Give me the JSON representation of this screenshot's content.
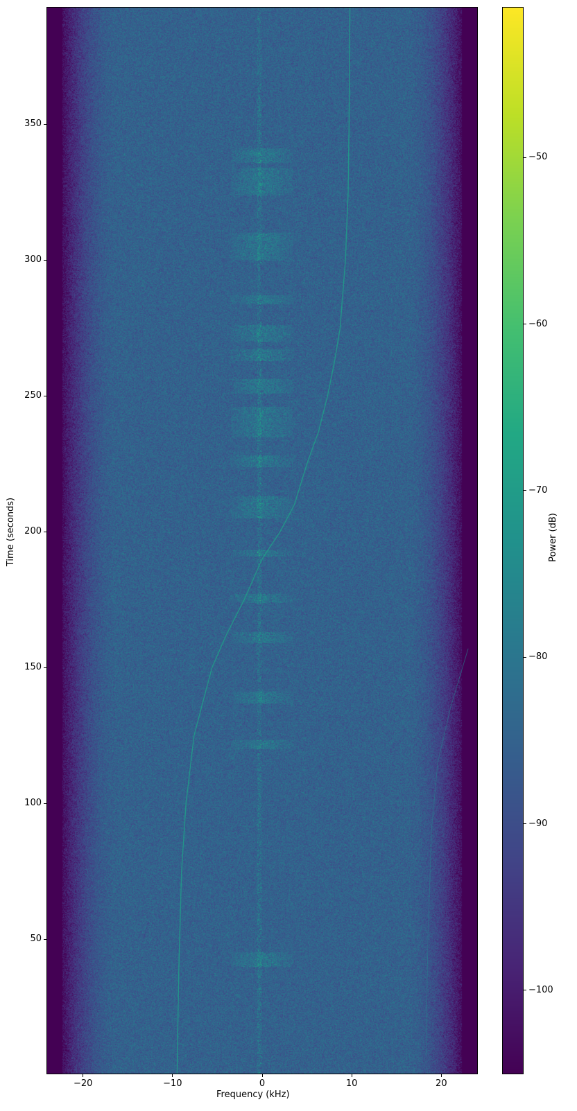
{
  "chart_data": {
    "type": "heatmap",
    "subtype": "spectrogram",
    "xlabel": "Frequency (kHz)",
    "ylabel": "Time (seconds)",
    "colorbar_label": "Power (dB)",
    "colormap": "viridis",
    "xlim": [
      -24,
      24
    ],
    "ylim": [
      0.5,
      393
    ],
    "clim": [
      -105,
      -41
    ],
    "xticks": [
      -20,
      -10,
      0,
      10,
      20
    ],
    "xtick_labels": [
      "−20",
      "−10",
      "0",
      "10",
      "20"
    ],
    "yticks": [
      50,
      100,
      150,
      200,
      250,
      300,
      350
    ],
    "ytick_labels": [
      "50",
      "100",
      "150",
      "200",
      "250",
      "300",
      "350"
    ],
    "cticks": [
      -50,
      -60,
      -70,
      -80,
      -90,
      -100
    ],
    "ctick_labels": [
      "−50",
      "−60",
      "−70",
      "−80",
      "−90",
      "−100"
    ],
    "background_level_db": -85,
    "edge_level_db": -105,
    "signal_traces": [
      {
        "points": [
          [
            -9.5,
            0
          ],
          [
            -9.3,
            40
          ],
          [
            -9.0,
            75
          ],
          [
            -8.5,
            100
          ],
          [
            -7.6,
            125
          ],
          [
            -5.6,
            150
          ],
          [
            -4.0,
            162
          ],
          [
            -2.0,
            175
          ],
          [
            0,
            190
          ],
          [
            2.0,
            200
          ],
          [
            3.6,
            210
          ],
          [
            5.0,
            225
          ],
          [
            6.3,
            237
          ],
          [
            7.3,
            250
          ],
          [
            8.1,
            263
          ],
          [
            8.7,
            275
          ],
          [
            9.3,
            300
          ],
          [
            9.6,
            325
          ],
          [
            9.7,
            350
          ],
          [
            9.8,
            393
          ]
        ],
        "level_db": -70
      },
      {
        "points": [
          [
            18.3,
            8
          ],
          [
            18.5,
            50
          ],
          [
            18.9,
            90
          ],
          [
            19.6,
            115
          ],
          [
            21.0,
            135
          ],
          [
            23.0,
            157
          ]
        ],
        "level_db": -78
      }
    ],
    "bursts_near_zero_time_ranges": [
      [
        40,
        45
      ],
      [
        120,
        123
      ],
      [
        137,
        141
      ],
      [
        159,
        163
      ],
      [
        174,
        177
      ],
      [
        191,
        193
      ],
      [
        205,
        213
      ],
      [
        224,
        228
      ],
      [
        235,
        246
      ],
      [
        251,
        256
      ],
      [
        263,
        267
      ],
      [
        270,
        276
      ],
      [
        284,
        287
      ],
      [
        300,
        310
      ],
      [
        324,
        334
      ],
      [
        336,
        341
      ]
    ]
  }
}
